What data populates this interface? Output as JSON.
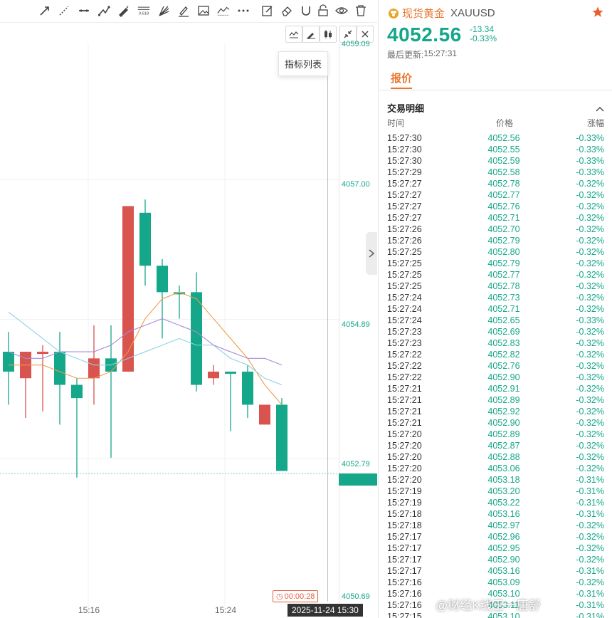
{
  "toolbar": {
    "tools": [
      "arrow-line-icon",
      "ray-line-icon",
      "horizontal-line-icon",
      "polyline-icon",
      "pen-icon",
      "fibonacci-icon",
      "fan-icon",
      "brush-icon",
      "image-icon",
      "trend-icon",
      "more-icon",
      "note-icon",
      "eraser-icon",
      "magnet-icon",
      "lock-icon",
      "eye-icon",
      "trash-icon"
    ],
    "fib_label": "0.618"
  },
  "chart_toolbar": {
    "tools": [
      "indicator-icon",
      "draw-icon",
      "candle-type-icon",
      "shrink-icon",
      "close-icon"
    ]
  },
  "tooltip": {
    "text": "指标列表"
  },
  "chart_data": {
    "type": "candlestick",
    "y_axis_labels": [
      "4059.09",
      "4057.00",
      "4054.89",
      "4052.79",
      "4050.69"
    ],
    "x_axis_labels": [
      "15:16",
      "15:24"
    ],
    "cursor_date": "2025-11-24 15:30",
    "countdown": "00:00:28",
    "colors": {
      "up": "#d9534f",
      "down": "#15a78a"
    },
    "candles": [
      {
        "o": 4054.4,
        "h": 4054.7,
        "l": 4053.6,
        "c": 4054.1,
        "dir": "down"
      },
      {
        "o": 4054.0,
        "h": 4054.4,
        "l": 4053.4,
        "c": 4054.4,
        "dir": "up"
      },
      {
        "o": 4054.4,
        "h": 4054.5,
        "l": 4053.5,
        "c": 4054.4,
        "dir": "up"
      },
      {
        "o": 4054.4,
        "h": 4054.7,
        "l": 4053.3,
        "c": 4053.9,
        "dir": "down"
      },
      {
        "o": 4053.9,
        "h": 4054.0,
        "l": 4052.5,
        "c": 4053.7,
        "dir": "down"
      },
      {
        "o": 4054.0,
        "h": 4054.8,
        "l": 4053.6,
        "c": 4054.3,
        "dir": "up"
      },
      {
        "o": 4054.3,
        "h": 4054.8,
        "l": 4052.8,
        "c": 4054.1,
        "dir": "down"
      },
      {
        "o": 4054.1,
        "h": 4056.6,
        "l": 4054.1,
        "c": 4056.6,
        "dir": "up"
      },
      {
        "o": 4056.5,
        "h": 4056.7,
        "l": 4055.4,
        "c": 4055.7,
        "dir": "down"
      },
      {
        "o": 4055.7,
        "h": 4055.8,
        "l": 4054.6,
        "c": 4055.3,
        "dir": "down"
      },
      {
        "o": 4055.3,
        "h": 4055.4,
        "l": 4054.9,
        "c": 4055.3,
        "dir": "down"
      },
      {
        "o": 4055.3,
        "h": 4055.6,
        "l": 4053.8,
        "c": 4053.9,
        "dir": "down"
      },
      {
        "o": 4054.0,
        "h": 4054.2,
        "l": 4053.9,
        "c": 4054.1,
        "dir": "up"
      },
      {
        "o": 4054.1,
        "h": 4054.1,
        "l": 4053.2,
        "c": 4054.1,
        "dir": "down"
      },
      {
        "o": 4054.1,
        "h": 4054.2,
        "l": 4053.4,
        "c": 4053.6,
        "dir": "down"
      },
      {
        "o": 4053.3,
        "h": 4053.6,
        "l": 4053.3,
        "c": 4053.6,
        "dir": "up"
      },
      {
        "o": 4053.6,
        "h": 4053.7,
        "l": 4052.6,
        "c": 4052.6,
        "dir": "down"
      }
    ],
    "ma_series": [
      {
        "color": "#f29a4a",
        "values": [
          4054.2,
          4054.2,
          4054.2,
          4054.1,
          4054.0,
          4054.0,
          4054.1,
          4054.4,
          4054.9,
          4055.2,
          4055.3,
          4055.2,
          4054.9,
          4054.6,
          4054.3,
          4053.9,
          4053.6
        ]
      },
      {
        "color": "#8fd3e8",
        "values": [
          4055.0,
          4054.8,
          4054.6,
          4054.4,
          4054.3,
          4054.2,
          4054.2,
          4054.3,
          4054.4,
          4054.5,
          4054.6,
          4054.5,
          4054.5,
          4054.3,
          4054.2,
          4054.0,
          4053.9
        ]
      },
      {
        "color": "#a78bd8",
        "values": [
          4054.4,
          4054.3,
          4054.3,
          4054.4,
          4054.4,
          4054.4,
          4054.5,
          4054.7,
          4054.8,
          4054.9,
          4054.8,
          4054.7,
          4054.5,
          4054.4,
          4054.3,
          4054.3,
          4054.2
        ]
      }
    ]
  },
  "instrument": {
    "name": "现货黄金",
    "code": "XAUUSD",
    "price": "4052.56",
    "change_abs": "-13.34",
    "change_pct": "-0.33%",
    "last_update_label": "最后更新:",
    "last_update_time": "15:27:31"
  },
  "tabs": {
    "quote": "报价"
  },
  "trade_detail": {
    "title": "交易明细",
    "headers": {
      "time": "时间",
      "price": "价格",
      "change": "涨幅"
    },
    "rows": [
      {
        "time": "15:27:30",
        "price": "4052.56",
        "change": "-0.33%"
      },
      {
        "time": "15:27:30",
        "price": "4052.55",
        "change": "-0.33%"
      },
      {
        "time": "15:27:30",
        "price": "4052.59",
        "change": "-0.33%"
      },
      {
        "time": "15:27:29",
        "price": "4052.58",
        "change": "-0.33%"
      },
      {
        "time": "15:27:27",
        "price": "4052.78",
        "change": "-0.32%"
      },
      {
        "time": "15:27:27",
        "price": "4052.77",
        "change": "-0.32%"
      },
      {
        "time": "15:27:27",
        "price": "4052.76",
        "change": "-0.32%"
      },
      {
        "time": "15:27:27",
        "price": "4052.71",
        "change": "-0.32%"
      },
      {
        "time": "15:27:26",
        "price": "4052.70",
        "change": "-0.32%"
      },
      {
        "time": "15:27:26",
        "price": "4052.79",
        "change": "-0.32%"
      },
      {
        "time": "15:27:25",
        "price": "4052.80",
        "change": "-0.32%"
      },
      {
        "time": "15:27:25",
        "price": "4052.79",
        "change": "-0.32%"
      },
      {
        "time": "15:27:25",
        "price": "4052.77",
        "change": "-0.32%"
      },
      {
        "time": "15:27:25",
        "price": "4052.78",
        "change": "-0.32%"
      },
      {
        "time": "15:27:24",
        "price": "4052.73",
        "change": "-0.32%"
      },
      {
        "time": "15:27:24",
        "price": "4052.71",
        "change": "-0.32%"
      },
      {
        "time": "15:27:24",
        "price": "4052.65",
        "change": "-0.33%"
      },
      {
        "time": "15:27:23",
        "price": "4052.69",
        "change": "-0.32%"
      },
      {
        "time": "15:27:23",
        "price": "4052.83",
        "change": "-0.32%"
      },
      {
        "time": "15:27:22",
        "price": "4052.82",
        "change": "-0.32%"
      },
      {
        "time": "15:27:22",
        "price": "4052.76",
        "change": "-0.32%"
      },
      {
        "time": "15:27:22",
        "price": "4052.90",
        "change": "-0.32%"
      },
      {
        "time": "15:27:21",
        "price": "4052.91",
        "change": "-0.32%"
      },
      {
        "time": "15:27:21",
        "price": "4052.89",
        "change": "-0.32%"
      },
      {
        "time": "15:27:21",
        "price": "4052.92",
        "change": "-0.32%"
      },
      {
        "time": "15:27:21",
        "price": "4052.90",
        "change": "-0.32%"
      },
      {
        "time": "15:27:20",
        "price": "4052.89",
        "change": "-0.32%"
      },
      {
        "time": "15:27:20",
        "price": "4052.87",
        "change": "-0.32%"
      },
      {
        "time": "15:27:20",
        "price": "4052.88",
        "change": "-0.32%"
      },
      {
        "time": "15:27:20",
        "price": "4053.06",
        "change": "-0.32%"
      },
      {
        "time": "15:27:20",
        "price": "4053.18",
        "change": "-0.31%"
      },
      {
        "time": "15:27:19",
        "price": "4053.20",
        "change": "-0.31%"
      },
      {
        "time": "15:27:19",
        "price": "4053.22",
        "change": "-0.31%"
      },
      {
        "time": "15:27:18",
        "price": "4053.16",
        "change": "-0.31%"
      },
      {
        "time": "15:27:18",
        "price": "4052.97",
        "change": "-0.32%"
      },
      {
        "time": "15:27:17",
        "price": "4052.96",
        "change": "-0.32%"
      },
      {
        "time": "15:27:17",
        "price": "4052.95",
        "change": "-0.32%"
      },
      {
        "time": "15:27:17",
        "price": "4052.90",
        "change": "-0.32%"
      },
      {
        "time": "15:27:17",
        "price": "4053.16",
        "change": "-0.31%"
      },
      {
        "time": "15:27:16",
        "price": "4053.09",
        "change": "-0.32%"
      },
      {
        "time": "15:27:16",
        "price": "4053.10",
        "change": "-0.31%"
      },
      {
        "time": "15:27:16",
        "price": "4053.11",
        "change": "-0.31%"
      },
      {
        "time": "15:27:15",
        "price": "4053.10",
        "change": "-0.31%"
      }
    ]
  },
  "watermark": "@财经K线王一唐舒"
}
